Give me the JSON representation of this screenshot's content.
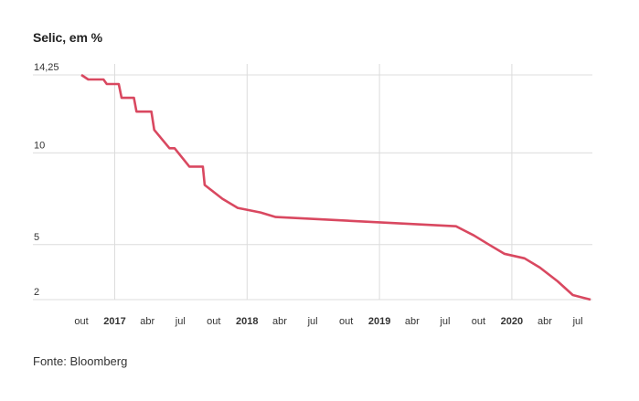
{
  "title": "Selic, em %",
  "source": "Fonte: Bloomberg",
  "chart_data": {
    "type": "line",
    "title": "Selic, em %",
    "ylabel": "",
    "xlabel": "",
    "y_ticks": [
      {
        "value": 2,
        "label": "2"
      },
      {
        "value": 5,
        "label": "5"
      },
      {
        "value": 10,
        "label": "10"
      },
      {
        "value": 14.25,
        "label": "14,25"
      }
    ],
    "x_ticks": [
      {
        "date": "2016-10-01",
        "label": "out",
        "year": false
      },
      {
        "date": "2017-01-01",
        "label": "2017",
        "year": true
      },
      {
        "date": "2017-04-01",
        "label": "abr",
        "year": false
      },
      {
        "date": "2017-07-01",
        "label": "jul",
        "year": false
      },
      {
        "date": "2017-10-01",
        "label": "out",
        "year": false
      },
      {
        "date": "2018-01-01",
        "label": "2018",
        "year": true
      },
      {
        "date": "2018-04-01",
        "label": "abr",
        "year": false
      },
      {
        "date": "2018-07-01",
        "label": "jul",
        "year": false
      },
      {
        "date": "2018-10-01",
        "label": "out",
        "year": false
      },
      {
        "date": "2019-01-01",
        "label": "2019",
        "year": true
      },
      {
        "date": "2019-04-01",
        "label": "abr",
        "year": false
      },
      {
        "date": "2019-07-01",
        "label": "jul",
        "year": false
      },
      {
        "date": "2019-10-01",
        "label": "out",
        "year": false
      },
      {
        "date": "2020-01-01",
        "label": "2020",
        "year": true
      },
      {
        "date": "2020-04-01",
        "label": "abr",
        "year": false
      },
      {
        "date": "2020-07-01",
        "label": "jul",
        "year": false
      }
    ],
    "x_range": [
      "2016-10-01",
      "2020-08-05"
    ],
    "y_range": [
      2,
      14.25
    ],
    "grid": true,
    "series": [
      {
        "color": "#d94860",
        "points": [
          {
            "x": "2016-10-01",
            "y": 14.25
          },
          {
            "x": "2016-10-20",
            "y": 14.0
          },
          {
            "x": "2016-12-01",
            "y": 14.0
          },
          {
            "x": "2016-12-10",
            "y": 13.75
          },
          {
            "x": "2017-01-12",
            "y": 13.75
          },
          {
            "x": "2017-01-20",
            "y": 13.0
          },
          {
            "x": "2017-02-23",
            "y": 13.0
          },
          {
            "x": "2017-03-02",
            "y": 12.25
          },
          {
            "x": "2017-04-12",
            "y": 12.25
          },
          {
            "x": "2017-04-20",
            "y": 11.25
          },
          {
            "x": "2017-06-01",
            "y": 10.25
          },
          {
            "x": "2017-06-15",
            "y": 10.25
          },
          {
            "x": "2017-07-26",
            "y": 9.25
          },
          {
            "x": "2017-09-01",
            "y": 9.25
          },
          {
            "x": "2017-09-06",
            "y": 8.25
          },
          {
            "x": "2017-10-25",
            "y": 7.5
          },
          {
            "x": "2017-12-06",
            "y": 7.0
          },
          {
            "x": "2018-02-07",
            "y": 6.75
          },
          {
            "x": "2018-03-21",
            "y": 6.5
          },
          {
            "x": "2019-07-31",
            "y": 6.0
          },
          {
            "x": "2019-09-18",
            "y": 5.5
          },
          {
            "x": "2019-10-30",
            "y": 5.0
          },
          {
            "x": "2019-12-11",
            "y": 4.5
          },
          {
            "x": "2020-02-05",
            "y": 4.25
          },
          {
            "x": "2020-03-18",
            "y": 3.75
          },
          {
            "x": "2020-05-06",
            "y": 3.0
          },
          {
            "x": "2020-06-17",
            "y": 2.25
          },
          {
            "x": "2020-08-05",
            "y": 2.0
          }
        ]
      }
    ]
  }
}
